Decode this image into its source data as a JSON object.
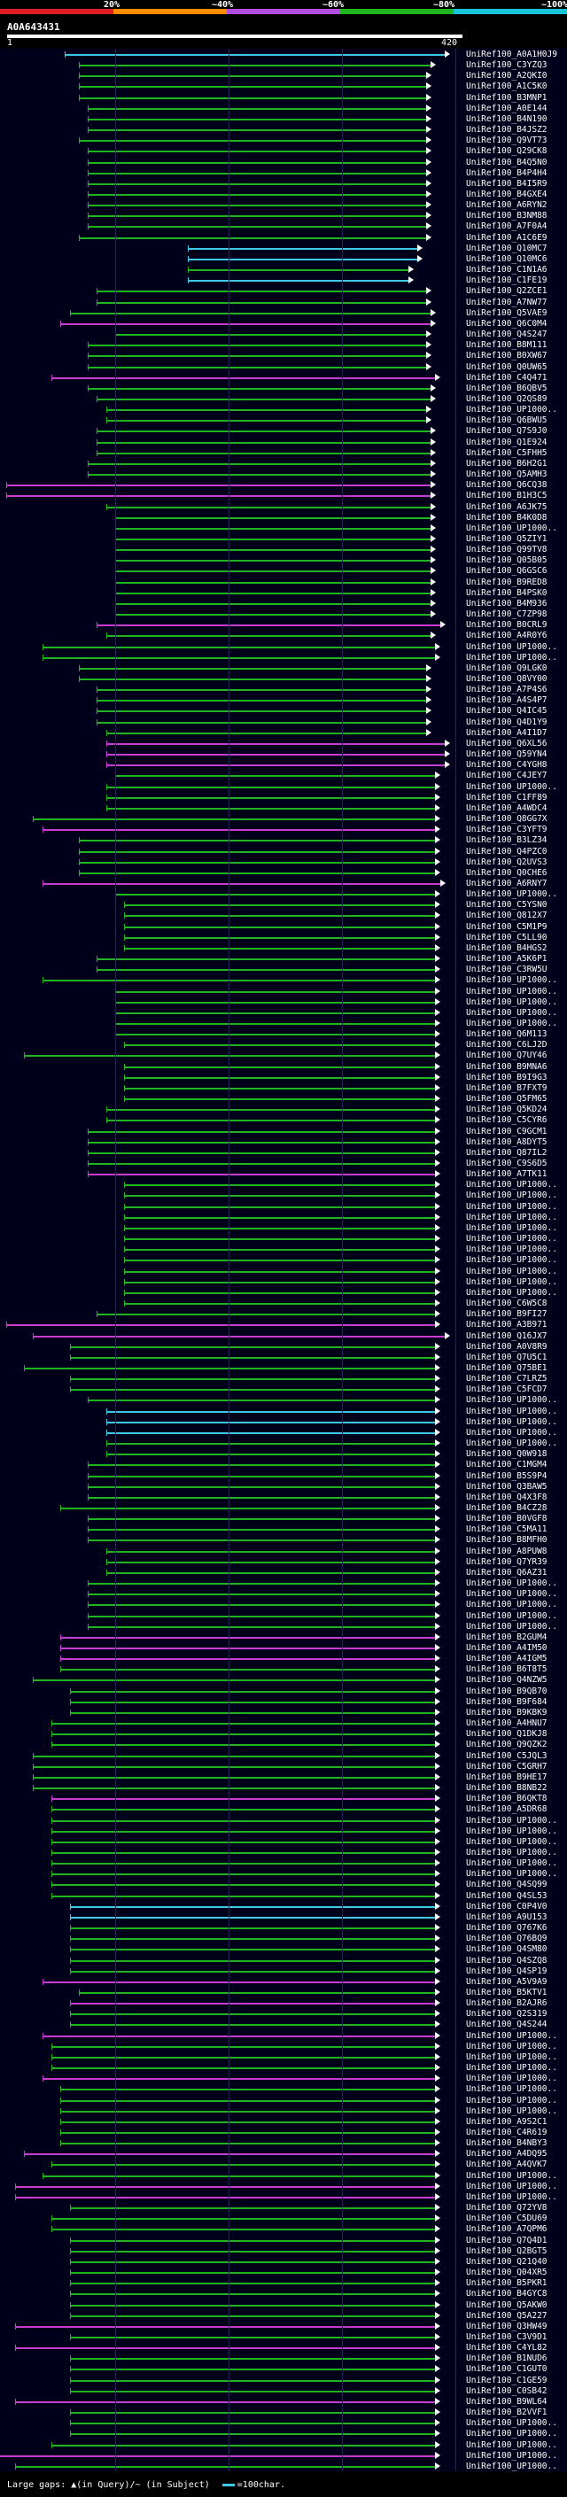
{
  "scale": {
    "labels": [
      "20%",
      "~40%",
      "~60%",
      "~80%",
      "~100%"
    ],
    "colors": [
      "#e11b22",
      "#ff8c00",
      "#b14ee0",
      "#1fb51f",
      "#17c5d8"
    ]
  },
  "query": {
    "id": "A0A643431",
    "start": "1",
    "end": "420"
  },
  "footer": {
    "text": "Large gaps: ▲(in Query)/~ (in Subject)",
    "legend": "=100char."
  },
  "hits": [
    [
      "UniRef100_A0A1H0J9",
      "cyan",
      3,
      98
    ],
    [
      "UniRef100_C3YZQ3",
      "green",
      6,
      95
    ],
    [
      "UniRef100_A2QKI0",
      "green",
      6,
      94
    ],
    [
      "UniRef100_A1C5K0",
      "green",
      6,
      94
    ],
    [
      "UniRef100_B3MNP1",
      "green",
      6,
      94
    ],
    [
      "UniRef100_A0E144",
      "green",
      8,
      94
    ],
    [
      "UniRef100_B4N190",
      "green",
      8,
      94
    ],
    [
      "UniRef100_B4JSZ2",
      "green",
      8,
      94
    ],
    [
      "UniRef100_Q9VT73",
      "green",
      6,
      94
    ],
    [
      "UniRef100_Q29CK8",
      "green",
      8,
      94
    ],
    [
      "UniRef100_B4Q5N0",
      "green",
      8,
      94
    ],
    [
      "UniRef100_B4P4H4",
      "green",
      8,
      94
    ],
    [
      "UniRef100_B4I5R9",
      "green",
      8,
      94
    ],
    [
      "UniRef100_B4GXE4",
      "green",
      8,
      94
    ],
    [
      "UniRef100_A6RYN2",
      "green",
      8,
      94
    ],
    [
      "UniRef100_B3NM88",
      "green",
      8,
      94
    ],
    [
      "UniRef100_A7F0A4",
      "green",
      8,
      94
    ],
    [
      "UniRef100_A1C6E9",
      "green",
      6,
      94
    ],
    [
      "UniRef100_Q10MC7",
      "cyan",
      30,
      92
    ],
    [
      "UniRef100_Q10MC6",
      "cyan",
      30,
      92
    ],
    [
      "UniRef100_C1N1A6",
      "green",
      30,
      90
    ],
    [
      "UniRef100_C1FE19",
      "cyan",
      30,
      90
    ],
    [
      "UniRef100_Q2ZCE1",
      "green",
      10,
      94
    ],
    [
      "UniRef100_A7NW77",
      "green",
      10,
      94
    ],
    [
      "UniRef100_Q5VAE9",
      "green",
      4,
      95
    ],
    [
      "UniRef100_Q6C0M4",
      "magenta",
      2,
      95
    ],
    [
      "UniRef100_Q4S247",
      "green",
      14,
      94
    ],
    [
      "UniRef100_B8M111",
      "green",
      8,
      94
    ],
    [
      "UniRef100_B0XW67",
      "green",
      8,
      94
    ],
    [
      "UniRef100_Q0UW65",
      "green",
      8,
      94
    ],
    [
      "UniRef100_C4Q471",
      "magenta",
      0,
      96
    ],
    [
      "UniRef100_B6QBV5",
      "green",
      8,
      95
    ],
    [
      "UniRef100_Q2QS89",
      "green",
      10,
      95
    ],
    [
      "UniRef100_UP1000..",
      "green",
      12,
      94
    ],
    [
      "UniRef100_Q6BWU5",
      "green",
      12,
      94
    ],
    [
      "UniRef100_Q7S9J0",
      "green",
      10,
      95
    ],
    [
      "UniRef100_Q1E924",
      "green",
      10,
      95
    ],
    [
      "UniRef100_C5FHH5",
      "green",
      10,
      95
    ],
    [
      "UniRef100_B6H2G1",
      "green",
      8,
      95
    ],
    [
      "UniRef100_Q5AMH3",
      "green",
      8,
      95
    ],
    [
      "UniRef100_Q6CQ38",
      "magenta",
      -10,
      95
    ],
    [
      "UniRef100_B1H3C5",
      "magenta",
      -10,
      95
    ],
    [
      "UniRef100_A6JK75",
      "green",
      12,
      95
    ],
    [
      "UniRef100_B4K0D8",
      "green",
      14,
      95
    ],
    [
      "UniRef100_UP1000..",
      "green",
      14,
      95
    ],
    [
      "UniRef100_Q5ZIY1",
      "green",
      14,
      95
    ],
    [
      "UniRef100_Q99TV8",
      "green",
      14,
      95
    ],
    [
      "UniRef100_Q05B05",
      "green",
      14,
      95
    ],
    [
      "UniRef100_Q6GSC6",
      "green",
      14,
      95
    ],
    [
      "UniRef100_B9RED8",
      "green",
      14,
      95
    ],
    [
      "UniRef100_B4PSK0",
      "green",
      14,
      95
    ],
    [
      "UniRef100_B4M936",
      "green",
      14,
      95
    ],
    [
      "UniRef100_C7ZP98",
      "green",
      14,
      95
    ],
    [
      "UniRef100_B0CRL9",
      "magenta",
      10,
      97
    ],
    [
      "UniRef100_A4R0Y6",
      "green",
      12,
      95
    ],
    [
      "UniRef100_UP1000..",
      "green",
      -2,
      96
    ],
    [
      "UniRef100_UP1000..",
      "green",
      -2,
      96
    ],
    [
      "UniRef100_Q9LGK0",
      "green",
      6,
      94
    ],
    [
      "UniRef100_Q8VY00",
      "green",
      6,
      94
    ],
    [
      "UniRef100_A7P4S6",
      "green",
      10,
      94
    ],
    [
      "UniRef100_A4S4P7",
      "green",
      10,
      94
    ],
    [
      "UniRef100_Q4IC45",
      "green",
      10,
      94
    ],
    [
      "UniRef100_Q4D1Y9",
      "green",
      10,
      94
    ],
    [
      "UniRef100_A4I1D7",
      "green",
      12,
      94
    ],
    [
      "UniRef100_Q6XL56",
      "magenta",
      12,
      98
    ],
    [
      "UniRef100_Q59YN4",
      "magenta",
      12,
      98
    ],
    [
      "UniRef100_C4YGH8",
      "magenta",
      12,
      98
    ],
    [
      "UniRef100_C4JEY7",
      "green",
      14,
      96
    ],
    [
      "UniRef100_UP1000..",
      "green",
      12,
      96
    ],
    [
      "UniRef100_C1FF89",
      "green",
      12,
      96
    ],
    [
      "UniRef100_A4WDC4",
      "green",
      12,
      96
    ],
    [
      "UniRef100_Q8GG7X",
      "green",
      -4,
      96
    ],
    [
      "UniRef100_C3YFT9",
      "magenta",
      -2,
      96
    ],
    [
      "UniRef100_B3LZ34",
      "green",
      6,
      96
    ],
    [
      "UniRef100_Q4PZC0",
      "green",
      6,
      96
    ],
    [
      "UniRef100_Q2UVS3",
      "green",
      6,
      96
    ],
    [
      "UniRef100_Q0CHE6",
      "green",
      6,
      96
    ],
    [
      "UniRef100_A6RNY7",
      "magenta",
      -2,
      97
    ],
    [
      "UniRef100_UP1000..",
      "green",
      14,
      96
    ],
    [
      "UniRef100_C5YSN0",
      "green",
      16,
      96
    ],
    [
      "UniRef100_Q812X7",
      "green",
      16,
      96
    ],
    [
      "UniRef100_C5M1P9",
      "green",
      16,
      96
    ],
    [
      "UniRef100_C5LL90",
      "green",
      16,
      96
    ],
    [
      "UniRef100_B4HGS2",
      "green",
      16,
      96
    ],
    [
      "UniRef100_A5K6P1",
      "green",
      10,
      96
    ],
    [
      "UniRef100_C3RW5U",
      "green",
      10,
      96
    ],
    [
      "UniRef100_UP1000..",
      "green",
      -2,
      96
    ],
    [
      "UniRef100_UP1000..",
      "green",
      14,
      96
    ],
    [
      "UniRef100_UP1000..",
      "green",
      14,
      96
    ],
    [
      "UniRef100_UP1000..",
      "green",
      14,
      96
    ],
    [
      "UniRef100_UP1000..",
      "green",
      14,
      96
    ],
    [
      "UniRef100_Q6M113",
      "green",
      14,
      96
    ],
    [
      "UniRef100_C6LJ2D",
      "green",
      16,
      96
    ],
    [
      "UniRef100_Q7UY46",
      "green",
      -6,
      96
    ],
    [
      "UniRef100_B9MNA6",
      "green",
      16,
      96
    ],
    [
      "UniRef100_B9I9G3",
      "green",
      16,
      96
    ],
    [
      "UniRef100_B7FXT9",
      "green",
      16,
      96
    ],
    [
      "UniRef100_Q5FM65",
      "green",
      16,
      96
    ],
    [
      "UniRef100_Q5KD24",
      "green",
      12,
      96
    ],
    [
      "UniRef100_C5CYR6",
      "green",
      12,
      96
    ],
    [
      "UniRef100_C9GCM1",
      "green",
      8,
      96
    ],
    [
      "UniRef100_A8DYT5",
      "green",
      8,
      96
    ],
    [
      "UniRef100_Q87IL2",
      "green",
      8,
      96
    ],
    [
      "UniRef100_C9S6D5",
      "green",
      8,
      96
    ],
    [
      "UniRef100_A7TK11",
      "magenta",
      8,
      96
    ],
    [
      "UniRef100_UP1000..",
      "green",
      16,
      96
    ],
    [
      "UniRef100_UP1000..",
      "green",
      16,
      96
    ],
    [
      "UniRef100_UP1000..",
      "green",
      16,
      96
    ],
    [
      "UniRef100_UP1000..",
      "green",
      16,
      96
    ],
    [
      "UniRef100_UP1000..",
      "green",
      16,
      96
    ],
    [
      "UniRef100_UP1000..",
      "green",
      16,
      96
    ],
    [
      "UniRef100_UP1000..",
      "green",
      16,
      96
    ],
    [
      "UniRef100_UP1000..",
      "green",
      16,
      96
    ],
    [
      "UniRef100_UP1000..",
      "green",
      16,
      96
    ],
    [
      "UniRef100_UP1000..",
      "green",
      16,
      96
    ],
    [
      "UniRef100_UP1000..",
      "green",
      16,
      96
    ],
    [
      "UniRef100_C6W5C8",
      "green",
      16,
      96
    ],
    [
      "UniRef100_B9FI27",
      "green",
      10,
      96
    ],
    [
      "UniRef100_A3B971",
      "magenta",
      -10,
      96
    ],
    [
      "UniRef100_Q16JX7",
      "magenta",
      -4,
      98
    ],
    [
      "UniRef100_A0V8R9",
      "green",
      4,
      96
    ],
    [
      "UniRef100_Q7U5C1",
      "green",
      4,
      96
    ],
    [
      "UniRef100_Q75BE1",
      "green",
      -6,
      96
    ],
    [
      "UniRef100_C7LRZ5",
      "green",
      4,
      96
    ],
    [
      "UniRef100_C5FCD7",
      "green",
      4,
      96
    ],
    [
      "UniRef100_UP1000..",
      "green",
      8,
      96
    ],
    [
      "UniRef100_UP1000..",
      "cyan",
      12,
      96
    ],
    [
      "UniRef100_UP1000..",
      "cyan",
      12,
      96
    ],
    [
      "UniRef100_UP1000..",
      "cyan",
      12,
      96
    ],
    [
      "UniRef100_UP1000..",
      "green",
      12,
      96
    ],
    [
      "UniRef100_Q0W918",
      "green",
      12,
      96
    ],
    [
      "UniRef100_C1MGM4",
      "green",
      8,
      96
    ],
    [
      "UniRef100_B5S9P4",
      "green",
      8,
      96
    ],
    [
      "UniRef100_Q3BAW5",
      "green",
      8,
      96
    ],
    [
      "UniRef100_Q4X3F8",
      "green",
      8,
      96
    ],
    [
      "UniRef100_B4CZ28",
      "green",
      2,
      96
    ],
    [
      "UniRef100_B0VGF8",
      "green",
      8,
      96
    ],
    [
      "UniRef100_C5MA11",
      "green",
      8,
      96
    ],
    [
      "UniRef100_B8MFH0",
      "green",
      8,
      96
    ],
    [
      "UniRef100_A8PUW8",
      "green",
      12,
      96
    ],
    [
      "UniRef100_Q7YR39",
      "green",
      12,
      96
    ],
    [
      "UniRef100_Q6AZ31",
      "green",
      12,
      96
    ],
    [
      "UniRef100_UP1000..",
      "green",
      8,
      96
    ],
    [
      "UniRef100_UP1000..",
      "green",
      8,
      96
    ],
    [
      "UniRef100_UP1000..",
      "green",
      8,
      96
    ],
    [
      "UniRef100_UP1000..",
      "green",
      8,
      96
    ],
    [
      "UniRef100_UP1000..",
      "green",
      8,
      96
    ],
    [
      "UniRef100_B2GUM4",
      "magenta",
      2,
      96
    ],
    [
      "UniRef100_A4IM50",
      "magenta",
      2,
      96
    ],
    [
      "UniRef100_A4IGM5",
      "magenta",
      2,
      96
    ],
    [
      "UniRef100_B6T8T5",
      "green",
      2,
      96
    ],
    [
      "UniRef100_Q4NZW5",
      "green",
      -4,
      96
    ],
    [
      "UniRef100_B9QB70",
      "green",
      4,
      96
    ],
    [
      "UniRef100_B9F684",
      "green",
      4,
      96
    ],
    [
      "UniRef100_B9KBK9",
      "green",
      4,
      96
    ],
    [
      "UniRef100_A4HNU7",
      "green",
      0,
      96
    ],
    [
      "UniRef100_Q1DKJ8",
      "green",
      0,
      96
    ],
    [
      "UniRef100_Q9QZK2",
      "green",
      0,
      96
    ],
    [
      "UniRef100_C5JQL3",
      "green",
      -4,
      96
    ],
    [
      "UniRef100_C5GRH7",
      "green",
      -4,
      96
    ],
    [
      "UniRef100_B9HE17",
      "green",
      -4,
      96
    ],
    [
      "UniRef100_B8NB22",
      "green",
      -4,
      96
    ],
    [
      "UniRef100_B6QKT8",
      "magenta",
      0,
      96
    ],
    [
      "UniRef100_A5DR68",
      "green",
      0,
      96
    ],
    [
      "UniRef100_UP1000..",
      "green",
      0,
      96
    ],
    [
      "UniRef100_UP1000..",
      "green",
      0,
      96
    ],
    [
      "UniRef100_UP1000..",
      "green",
      0,
      96
    ],
    [
      "UniRef100_UP1000..",
      "green",
      0,
      96
    ],
    [
      "UniRef100_UP1000..",
      "green",
      0,
      96
    ],
    [
      "UniRef100_UP1000..",
      "green",
      0,
      96
    ],
    [
      "UniRef100_Q4SQ99",
      "green",
      0,
      96
    ],
    [
      "UniRef100_Q4SL53",
      "green",
      0,
      96
    ],
    [
      "UniRef100_C0P4V0",
      "cyan",
      4,
      96
    ],
    [
      "UniRef100_A9U153",
      "cyan",
      4,
      96
    ],
    [
      "UniRef100_Q767K6",
      "green",
      4,
      96
    ],
    [
      "UniRef100_Q76BQ9",
      "green",
      4,
      96
    ],
    [
      "UniRef100_Q4SM80",
      "green",
      4,
      96
    ],
    [
      "UniRef100_Q4SZQ8",
      "green",
      4,
      96
    ],
    [
      "UniRef100_Q4SP19",
      "green",
      4,
      96
    ],
    [
      "UniRef100_A5V9A9",
      "magenta",
      -2,
      96
    ],
    [
      "UniRef100_B5KTV1",
      "green",
      6,
      96
    ],
    [
      "UniRef100_B2AJR6",
      "magenta",
      4,
      96
    ],
    [
      "UniRef100_Q2S319",
      "green",
      4,
      96
    ],
    [
      "UniRef100_Q4S244",
      "green",
      4,
      96
    ],
    [
      "UniRef100_UP1000..",
      "magenta",
      -2,
      96
    ],
    [
      "UniRef100_UP1000..",
      "green",
      0,
      96
    ],
    [
      "UniRef100_UP1000..",
      "green",
      0,
      96
    ],
    [
      "UniRef100_UP1000..",
      "green",
      0,
      96
    ],
    [
      "UniRef100_UP1000..",
      "magenta",
      -2,
      96
    ],
    [
      "UniRef100_UP1000..",
      "green",
      2,
      96
    ],
    [
      "UniRef100_UP1000..",
      "green",
      2,
      96
    ],
    [
      "UniRef100_UP1000..",
      "green",
      2,
      96
    ],
    [
      "UniRef100_A9S2C1",
      "green",
      2,
      96
    ],
    [
      "UniRef100_C4R619",
      "green",
      2,
      96
    ],
    [
      "UniRef100_B4NBY3",
      "green",
      2,
      96
    ],
    [
      "UniRef100_A4DQ95",
      "magenta",
      -6,
      96
    ],
    [
      "UniRef100_A4QVK7",
      "green",
      0,
      96
    ],
    [
      "UniRef100_UP1000..",
      "green",
      -2,
      96
    ],
    [
      "UniRef100_UP1000..",
      "magenta",
      -8,
      96
    ],
    [
      "UniRef100_UP1000..",
      "magenta",
      -8,
      96
    ],
    [
      "UniRef100_Q72YV8",
      "green",
      4,
      96
    ],
    [
      "UniRef100_C5DU69",
      "green",
      0,
      96
    ],
    [
      "UniRef100_A7QPM6",
      "green",
      0,
      96
    ],
    [
      "UniRef100_Q7Q4D1",
      "green",
      4,
      96
    ],
    [
      "UniRef100_Q2BGT5",
      "green",
      4,
      96
    ],
    [
      "UniRef100_Q21Q40",
      "green",
      4,
      96
    ],
    [
      "UniRef100_Q04XR5",
      "green",
      4,
      96
    ],
    [
      "UniRef100_B5PKR1",
      "green",
      4,
      96
    ],
    [
      "UniRef100_B4GYC8",
      "green",
      4,
      96
    ],
    [
      "UniRef100_Q5AKW0",
      "green",
      4,
      96
    ],
    [
      "UniRef100_Q5A227",
      "green",
      4,
      96
    ],
    [
      "UniRef100_Q3HW49",
      "magenta",
      -8,
      96
    ],
    [
      "UniRef100_C3V9D1",
      "green",
      4,
      96
    ],
    [
      "UniRef100_C4YL82",
      "magenta",
      -8,
      96
    ],
    [
      "UniRef100_B1NUD6",
      "green",
      4,
      96
    ],
    [
      "UniRef100_C1GUT0",
      "green",
      4,
      96
    ],
    [
      "UniRef100_C1GE59",
      "green",
      4,
      96
    ],
    [
      "UniRef100_C0SB42",
      "green",
      4,
      96
    ],
    [
      "UniRef100_B9WL64",
      "magenta",
      -8,
      96
    ],
    [
      "UniRef100_B2VVF1",
      "green",
      4,
      96
    ],
    [
      "UniRef100_UP1000..",
      "green",
      4,
      96
    ],
    [
      "UniRef100_UP1000..",
      "green",
      4,
      96
    ],
    [
      "UniRef100_UP1000..",
      "green",
      0,
      96
    ],
    [
      "UniRef100_UP1000..",
      "magenta",
      -12,
      96
    ],
    [
      "UniRef100_UP1000..",
      "green",
      -8,
      96
    ]
  ]
}
